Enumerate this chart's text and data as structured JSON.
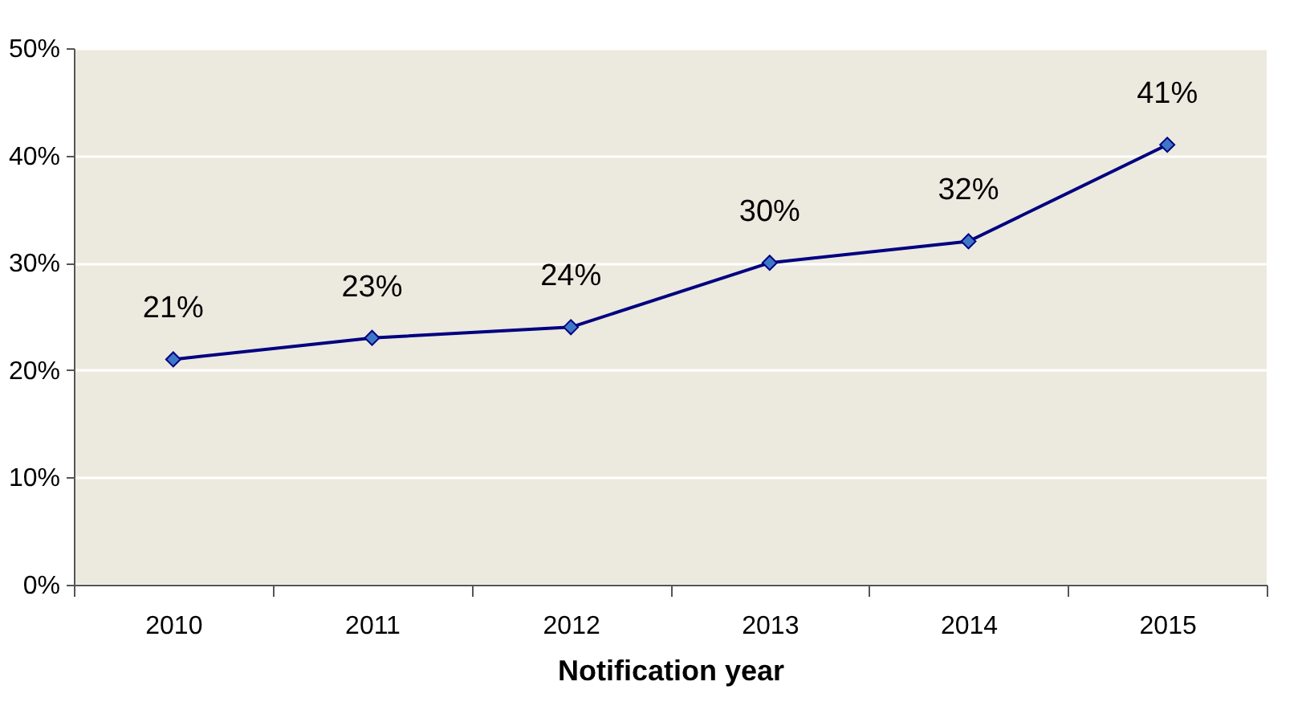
{
  "chart_data": {
    "type": "line",
    "xlabel": "Notification year",
    "categories": [
      "2010",
      "2011",
      "2012",
      "2013",
      "2014",
      "2015"
    ],
    "series": [
      {
        "color": "#000080",
        "values": [
          21,
          23,
          24,
          30,
          32,
          41
        ]
      }
    ],
    "value_labels": [
      "21%",
      "23%",
      "24%",
      "30%",
      "32%",
      "41%"
    ],
    "ylim": [
      0,
      50
    ],
    "yticks": [
      {
        "value": 0,
        "label": "0%"
      },
      {
        "value": 10,
        "label": "10%"
      },
      {
        "value": 20,
        "label": "20%"
      },
      {
        "value": 30,
        "label": "30%"
      },
      {
        "value": 40,
        "label": "40%"
      },
      {
        "value": 50,
        "label": "50%"
      }
    ],
    "grid": "y",
    "marker": "diamond",
    "line_style": "solid"
  }
}
